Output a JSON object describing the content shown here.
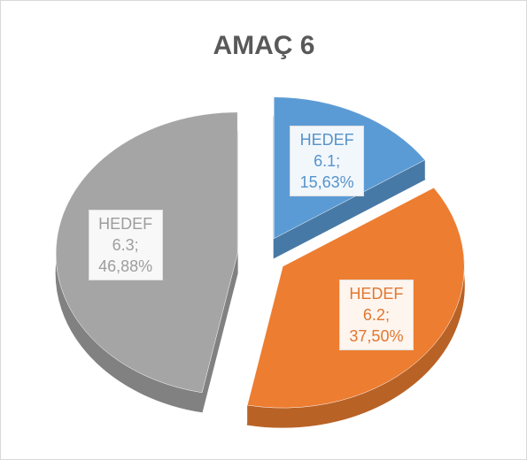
{
  "chart_data": {
    "type": "pie",
    "title": "AMAÇ 6",
    "categories": [
      "HEDEF 6.1",
      "HEDEF 6.2",
      "HEDEF 6.3"
    ],
    "values": [
      15.63,
      37.5,
      46.88
    ],
    "value_labels": [
      "15,63%",
      "37,50%",
      "46,88%"
    ],
    "label_separator": ";",
    "colors": [
      "#5b9bd5",
      "#ed7d31",
      "#a5a5a5"
    ]
  }
}
